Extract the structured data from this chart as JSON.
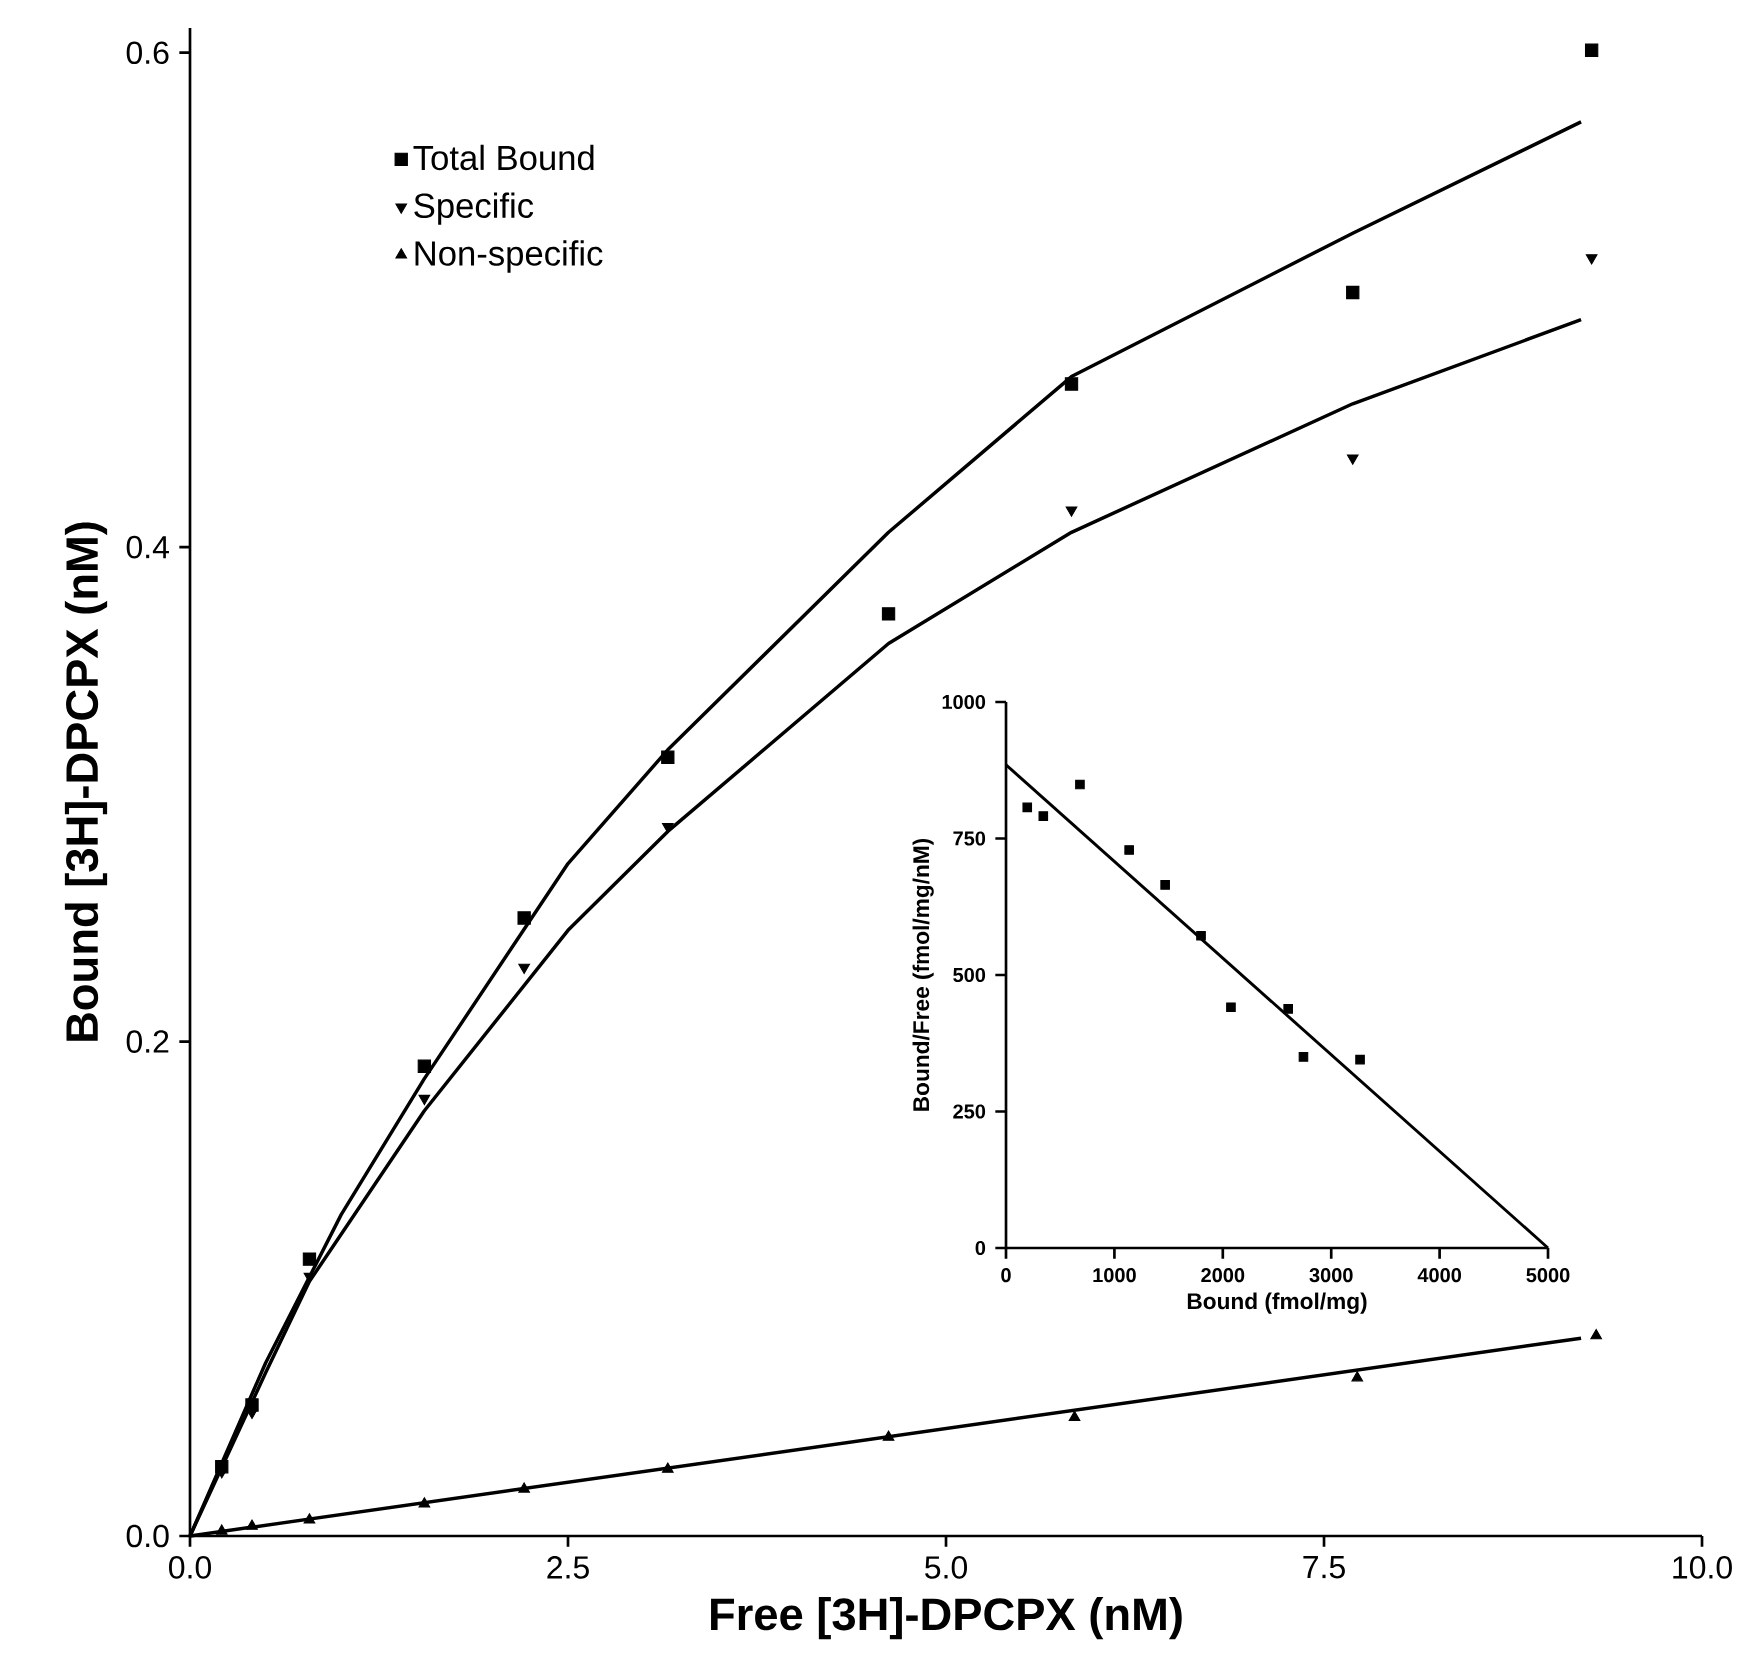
{
  "chart_data": [
    {
      "type": "scatter",
      "xlabel": "Free [3H]-DPCPX (nM)",
      "ylabel": "Bound [3H]-DPCPX (nM)",
      "xlim": [
        0,
        10
      ],
      "ylim": [
        0,
        0.61
      ],
      "xticks": [
        {
          "value": 0,
          "label": "0.0"
        },
        {
          "value": 2.5,
          "label": "2.5"
        },
        {
          "value": 5,
          "label": "5.0"
        },
        {
          "value": 7.5,
          "label": "7.5"
        },
        {
          "value": 10,
          "label": "10.0"
        }
      ],
      "yticks": [
        {
          "value": 0,
          "label": "0.0"
        },
        {
          "value": 0.2,
          "label": "0.2"
        },
        {
          "value": 0.4,
          "label": "0.4"
        },
        {
          "value": 0.6,
          "label": "0.6"
        }
      ],
      "legend": "top left",
      "line_style": "solid",
      "series": [
        {
          "name": "Total Bound",
          "color": "#000000",
          "marker": "square",
          "x": [
            0.21,
            0.41,
            0.79,
            1.55,
            2.21,
            3.16,
            4.62,
            5.83,
            7.69,
            9.27
          ],
          "values": [
            0.028,
            0.053,
            0.112,
            0.19,
            0.25,
            0.315,
            0.373,
            0.466,
            0.503,
            0.601
          ]
        },
        {
          "name": "Specific",
          "color": "#000000",
          "marker": "triangle down",
          "x": [
            0.21,
            0.41,
            0.79,
            1.55,
            2.21,
            3.16,
            5.83,
            7.69,
            9.27
          ],
          "values": [
            0.026,
            0.05,
            0.105,
            0.177,
            0.23,
            0.287,
            0.415,
            0.436,
            0.517
          ]
        },
        {
          "name": "Non-specific",
          "color": "#000000",
          "marker": "triangle",
          "x": [
            0.21,
            0.41,
            0.79,
            1.55,
            2.21,
            3.16,
            4.62,
            5.85,
            7.72,
            9.3
          ],
          "values": [
            0.002,
            0.004,
            0.0065,
            0.013,
            0.019,
            0.027,
            0.04,
            0.048,
            0.064,
            0.081
          ]
        },
        {
          "type": "line",
          "color": "#000000",
          "x": [
            0,
            0.5,
            1,
            1.55,
            2.5,
            3.16,
            4.62,
            5.83,
            7.69,
            9.2
          ],
          "values": [
            0,
            0.07,
            0.13,
            0.185,
            0.272,
            0.318,
            0.406,
            0.469,
            0.527,
            0.572
          ]
        },
        {
          "type": "line",
          "color": "#000000",
          "x": [
            0,
            0.5,
            0.79,
            1.55,
            2.5,
            3.16,
            4.62,
            5.83,
            7.69,
            9.2
          ],
          "values": [
            0,
            0.066,
            0.103,
            0.172,
            0.245,
            0.285,
            0.361,
            0.406,
            0.458,
            0.492
          ]
        },
        {
          "type": "line",
          "color": "#000000",
          "x": [
            0,
            9.2
          ],
          "values": [
            0,
            0.08
          ]
        }
      ]
    },
    {
      "type": "scatter",
      "xlabel": "Bound (fmol/mg)",
      "ylabel": "Bound/Free (fmol/mg/nM)",
      "xlim": [
        0,
        5000
      ],
      "ylim": [
        0,
        1000
      ],
      "xticks": [
        0,
        1000,
        2000,
        3000,
        4000,
        5000
      ],
      "yticks": [
        0,
        250,
        500,
        750,
        1000
      ],
      "line_style": "solid",
      "series": [
        {
          "color": "#000000",
          "marker": "square",
          "x": [
            196,
            344,
            682,
            1136,
            1468,
            1799,
            2075,
            2603,
            2744,
            3266
          ],
          "values": [
            807,
            791,
            849,
            729,
            665,
            572,
            441,
            438,
            350,
            345
          ]
        },
        {
          "type": "line",
          "color": "#000000",
          "x": [
            0,
            5000
          ],
          "values": [
            885,
            0
          ]
        }
      ]
    }
  ]
}
